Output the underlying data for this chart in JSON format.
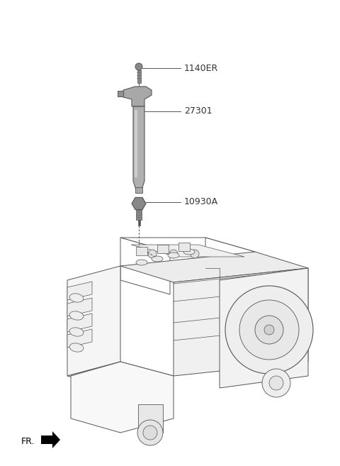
{
  "bg_color": "#ffffff",
  "line_color": "#555555",
  "text_color": "#333333",
  "label_1140ER": "1140ER",
  "label_27301": "27301",
  "label_10930A": "10930A",
  "label_fr": "FR.",
  "fig_width": 4.8,
  "fig_height": 6.57,
  "dpi": 100,
  "coil_color": "#a0a0a0",
  "coil_dark": "#707070",
  "coil_light": "#c8c8c8",
  "engine_line_color": "#555555",
  "engine_fill": "#ffffff"
}
